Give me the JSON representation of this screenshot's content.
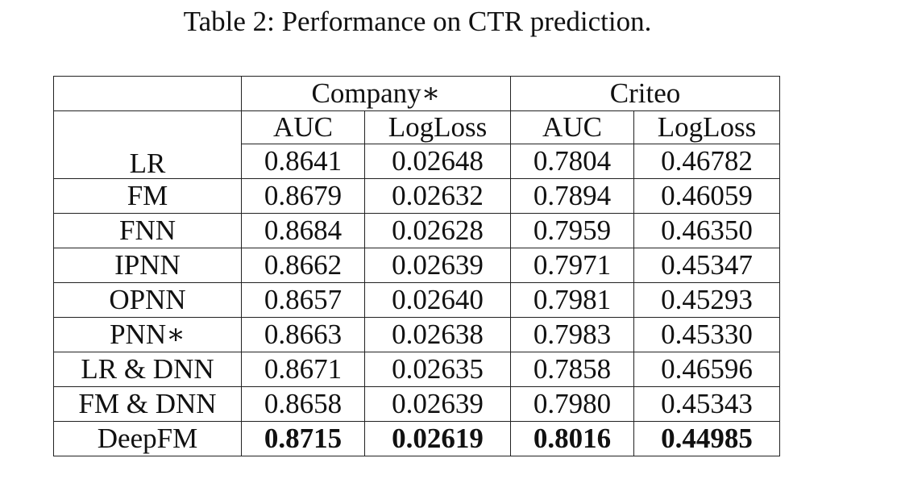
{
  "caption": "Table 2: Performance on CTR prediction.",
  "table": {
    "datasets": [
      "Company∗",
      "Criteo"
    ],
    "metrics": [
      "AUC",
      "LogLoss",
      "AUC",
      "LogLoss"
    ],
    "rows": [
      {
        "model": "LR",
        "values": [
          "0.8641",
          "0.02648",
          "0.7804",
          "0.46782"
        ]
      },
      {
        "model": "FM",
        "values": [
          "0.8679",
          "0.02632",
          "0.7894",
          "0.46059"
        ]
      },
      {
        "model": "FNN",
        "values": [
          "0.8684",
          "0.02628",
          "0.7959",
          "0.46350"
        ]
      },
      {
        "model": "IPNN",
        "values": [
          "0.8662",
          "0.02639",
          "0.7971",
          "0.45347"
        ]
      },
      {
        "model": "OPNN",
        "values": [
          "0.8657",
          "0.02640",
          "0.7981",
          "0.45293"
        ]
      },
      {
        "model": "PNN∗",
        "values": [
          "0.8663",
          "0.02638",
          "0.7983",
          "0.45330"
        ]
      },
      {
        "model": "LR & DNN",
        "values": [
          "0.8671",
          "0.02635",
          "0.7858",
          "0.46596"
        ]
      },
      {
        "model": "FM & DNN",
        "values": [
          "0.8658",
          "0.02639",
          "0.7980",
          "0.45343"
        ]
      },
      {
        "model": "DeepFM",
        "values": [
          "0.8715",
          "0.02619",
          "0.8016",
          "0.44985"
        ],
        "bold": true
      }
    ]
  }
}
